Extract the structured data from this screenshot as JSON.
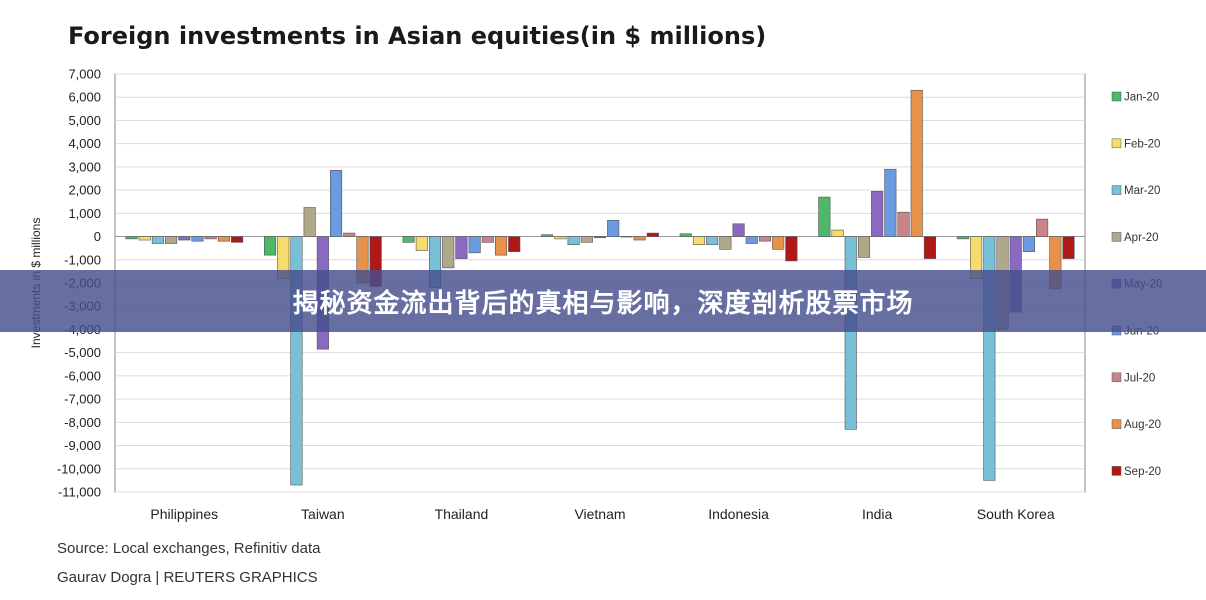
{
  "chart_data": {
    "type": "bar",
    "title": "Foreign investments in Asian equities(in $ millions)",
    "ylabel": "Investments in $ millions",
    "xlabel": "",
    "ylim": [
      -11000,
      7000
    ],
    "yticks": [
      "7,000",
      "6,000",
      "5,000",
      "4,000",
      "3,000",
      "2,000",
      "1,000",
      "0",
      "-1,000",
      "-2,000",
      "-3,000",
      "-4,000",
      "-5,000",
      "-6,000",
      "-7,000",
      "-8,000",
      "-9,000",
      "-10,000",
      "-11,000"
    ],
    "categories": [
      "Philippines",
      "Taiwan",
      "Thailand",
      "Vietnam",
      "Indonesia",
      "India",
      "South Korea"
    ],
    "legend_position": "right",
    "series": [
      {
        "name": "Jan-20",
        "color": "#4cb86a",
        "values": [
          -100,
          -800,
          -250,
          80,
          120,
          1700,
          -100
        ]
      },
      {
        "name": "Feb-20",
        "color": "#f6dc6c",
        "values": [
          -150,
          -1800,
          -600,
          -100,
          -350,
          280,
          -1800
        ]
      },
      {
        "name": "Mar-20",
        "color": "#78bfd8",
        "values": [
          -300,
          -10700,
          -2200,
          -350,
          -350,
          -8300,
          -10500
        ]
      },
      {
        "name": "Apr-20",
        "color": "#b0a88a",
        "values": [
          -300,
          1250,
          -1350,
          -250,
          -550,
          -900,
          -4000
        ]
      },
      {
        "name": "May-20",
        "color": "#8a6ac0",
        "values": [
          -150,
          -4850,
          -950,
          -50,
          550,
          1950,
          -3250
        ]
      },
      {
        "name": "Jun-20",
        "color": "#6a9ae0",
        "values": [
          -200,
          2850,
          -700,
          700,
          -300,
          2900,
          -650
        ]
      },
      {
        "name": "Jul-20",
        "color": "#c88488",
        "values": [
          -100,
          150,
          -250,
          0,
          -200,
          1050,
          750
        ]
      },
      {
        "name": "Aug-20",
        "color": "#e8914a",
        "values": [
          -200,
          -2000,
          -800,
          -150,
          -550,
          6300,
          -2250
        ]
      },
      {
        "name": "Sep-20",
        "color": "#b01818",
        "values": [
          -250,
          -2150,
          -650,
          150,
          -1050,
          -950,
          -950
        ]
      }
    ]
  },
  "footer": {
    "source": "Source: Local exchanges, Refinitiv data",
    "credit": "Gaurav Dogra | REUTERS GRAPHICS"
  },
  "banner": {
    "text": "揭秘资金流出背后的真相与影响，深度剖析股票市场"
  }
}
